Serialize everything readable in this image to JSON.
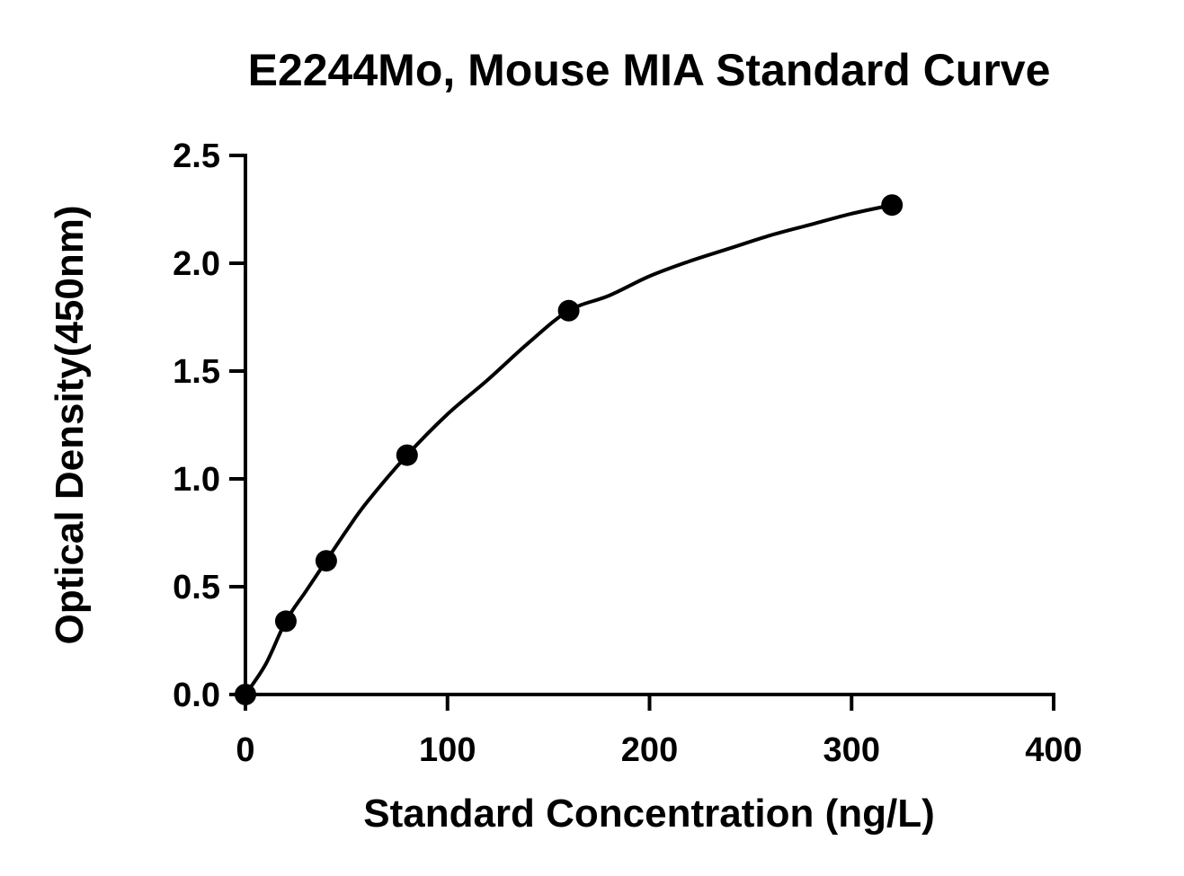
{
  "chart_data": {
    "type": "scatter",
    "title": "E2244Mo, Mouse MIA Standard Curve",
    "xlabel": "Standard Concentration (ng/L)",
    "ylabel": "Optical Density(450nm)",
    "xlim": [
      0,
      400
    ],
    "ylim": [
      0,
      2.5
    ],
    "x_ticks": [
      0,
      100,
      200,
      300,
      400
    ],
    "x_tick_labels": [
      "0",
      "100",
      "200",
      "300",
      "400"
    ],
    "y_ticks": [
      0,
      0.5,
      1.0,
      1.5,
      2.0,
      2.5
    ],
    "y_tick_labels": [
      "0.0",
      "0.5",
      "1.0",
      "1.5",
      "2.0",
      "2.5"
    ],
    "grid": false,
    "legend": "none",
    "series": [
      {
        "x": [
          0,
          20,
          40,
          80,
          160,
          320
        ],
        "y": [
          0.0,
          0.34,
          0.62,
          1.11,
          1.78,
          2.27
        ]
      }
    ],
    "fit_curve": {
      "style": "smooth line through points",
      "x": [
        0,
        10,
        20,
        30,
        40,
        50,
        60,
        80,
        100,
        120,
        140,
        160,
        180,
        200,
        220,
        240,
        260,
        280,
        300,
        320
      ],
      "y": [
        0.0,
        0.14,
        0.34,
        0.48,
        0.62,
        0.76,
        0.89,
        1.11,
        1.3,
        1.46,
        1.63,
        1.78,
        1.85,
        1.94,
        2.01,
        2.07,
        2.13,
        2.18,
        2.23,
        2.27
      ]
    },
    "colors": {
      "marker": "#000000",
      "line": "#000000",
      "axis": "#000000",
      "background": "#ffffff"
    }
  }
}
